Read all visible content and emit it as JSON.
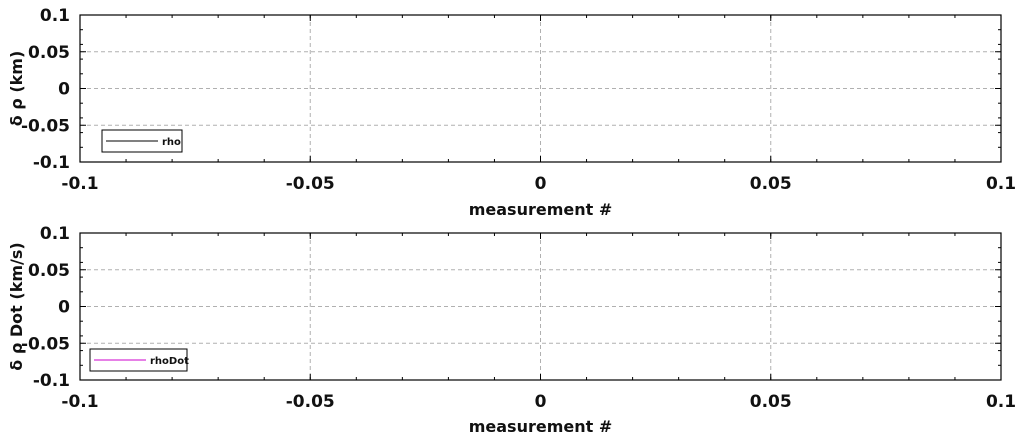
{
  "chart_data": [
    {
      "type": "line",
      "xlabel": "measurement #",
      "ylabel": "δ ρ (km)",
      "xlim": [
        -0.1,
        0.1
      ],
      "ylim": [
        -0.1,
        0.1
      ],
      "x_ticks": [
        "-0.1",
        "-0.05",
        "0",
        "0.05",
        "0.1"
      ],
      "y_ticks": [
        "0.1",
        "0.05",
        "0",
        "-0.05",
        "-0.1"
      ],
      "grid": true,
      "legend_position": "bottom-left",
      "series": [
        {
          "name": "rho",
          "color": "#000000",
          "x": [],
          "y": []
        }
      ]
    },
    {
      "type": "line",
      "xlabel": "measurement #",
      "ylabel": "δ ρ Dot (km/s)",
      "xlim": [
        -0.1,
        0.1
      ],
      "ylim": [
        -0.1,
        0.1
      ],
      "x_ticks": [
        "-0.1",
        "-0.05",
        "0",
        "0.05",
        "0.1"
      ],
      "y_ticks": [
        "0.1",
        "0.05",
        "0",
        "-0.05",
        "-0.1"
      ],
      "grid": true,
      "legend_position": "bottom-left",
      "series": [
        {
          "name": "rhoDot",
          "color": "#cc00cc",
          "x": [],
          "y": []
        }
      ]
    }
  ]
}
